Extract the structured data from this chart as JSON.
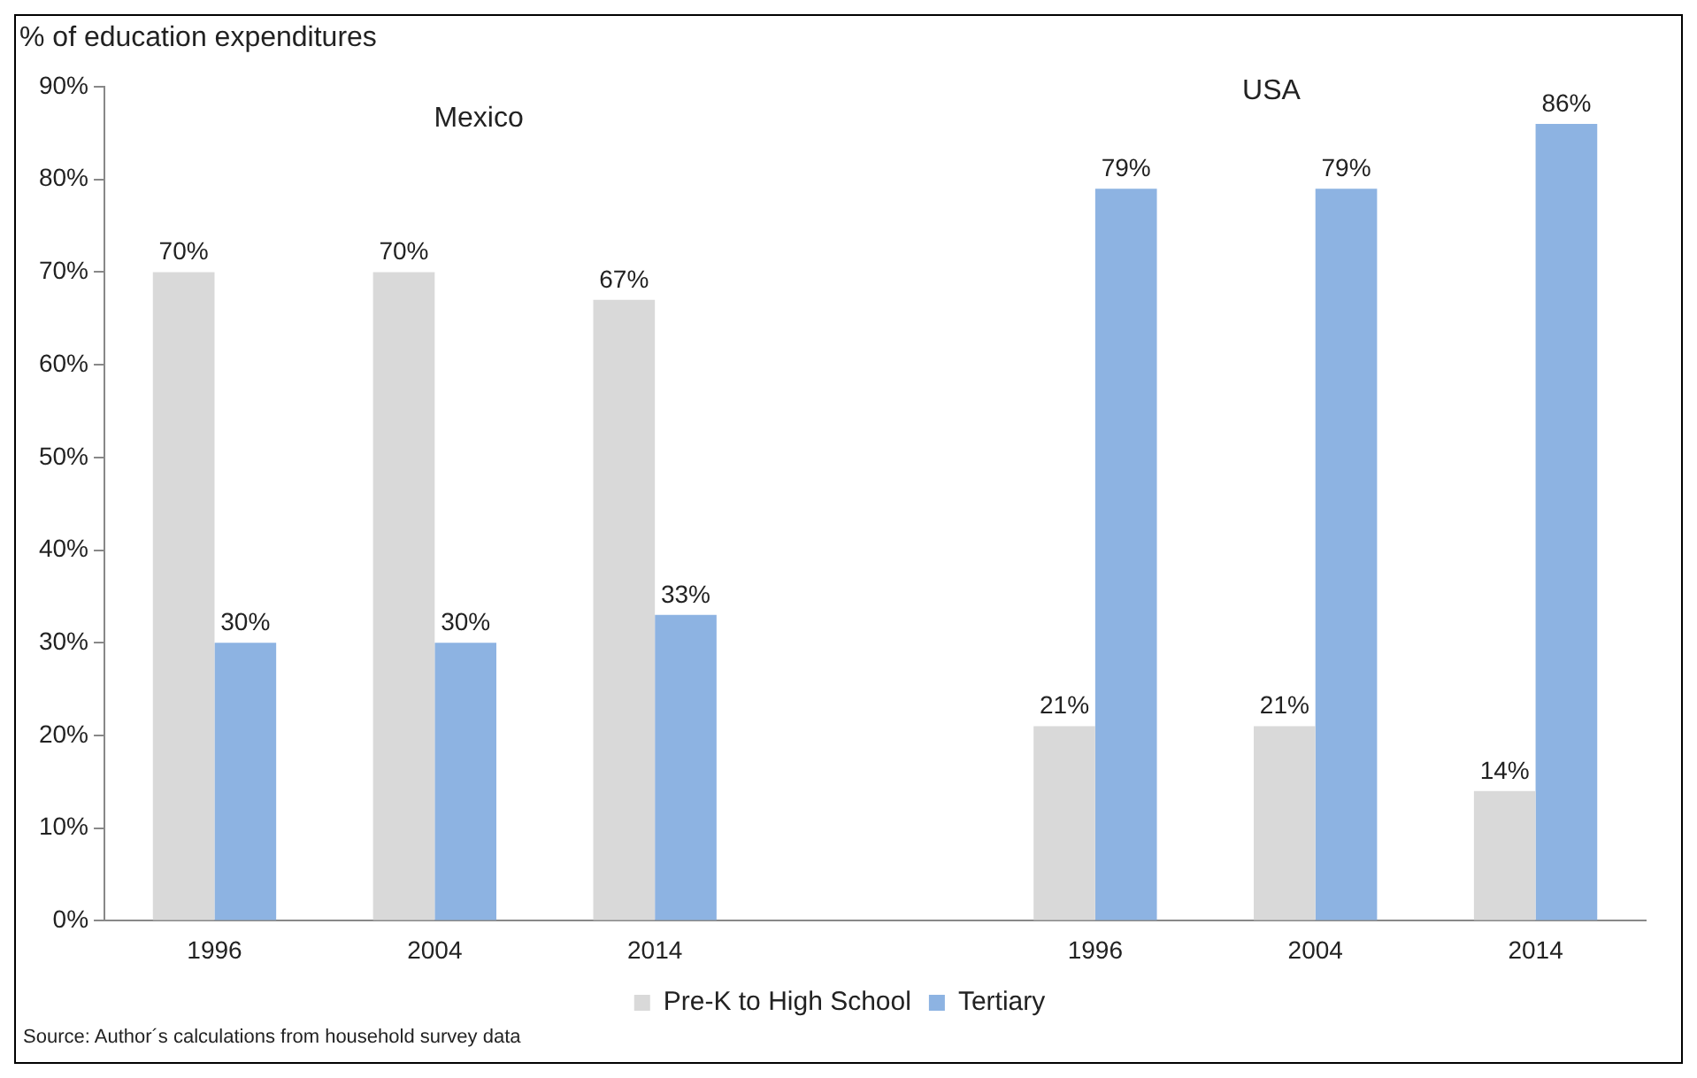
{
  "chart_data": {
    "type": "bar",
    "ylabel": "% of education expenditures",
    "categories": [
      "1996",
      "2004",
      "2014",
      null,
      "1996",
      "2004",
      "2014"
    ],
    "series": [
      {
        "name": "Pre-K to High School",
        "color": "#d9d9d9",
        "values": [
          70,
          70,
          67,
          null,
          21,
          21,
          14
        ],
        "value_labels": [
          "70%",
          "70%",
          "67%",
          null,
          "21%",
          "21%",
          "14%"
        ]
      },
      {
        "name": "Tertiary",
        "color": "#8db3e2",
        "values": [
          30,
          30,
          33,
          null,
          79,
          79,
          86
        ],
        "value_labels": [
          "30%",
          "30%",
          "33%",
          null,
          "79%",
          "79%",
          "86%"
        ]
      }
    ],
    "ylim": [
      0,
      90
    ],
    "yticks": [
      {
        "value": 0,
        "label": "0%"
      },
      {
        "value": 10,
        "label": "10%"
      },
      {
        "value": 20,
        "label": "20%"
      },
      {
        "value": 30,
        "label": "30%"
      },
      {
        "value": 40,
        "label": "40%"
      },
      {
        "value": 50,
        "label": "50%"
      },
      {
        "value": 60,
        "label": "60%"
      },
      {
        "value": 70,
        "label": "70%"
      },
      {
        "value": 80,
        "label": "80%"
      },
      {
        "value": 90,
        "label": "90%"
      }
    ],
    "grid": false,
    "legend": "bottom",
    "annotations": [
      "Mexico",
      "USA",
      "Source: Author´s calculations from household survey data"
    ]
  }
}
